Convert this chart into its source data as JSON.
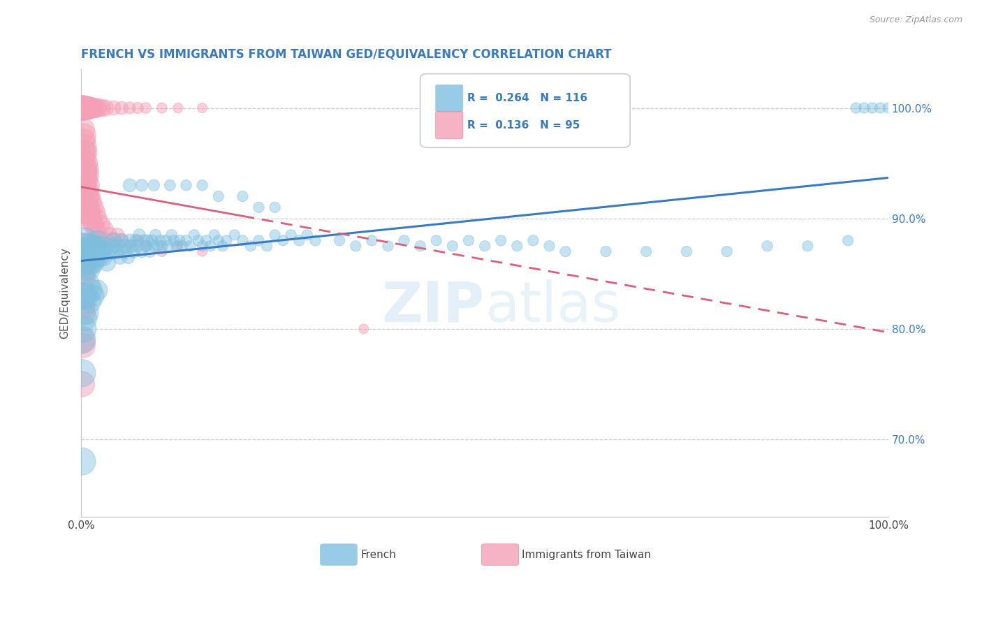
{
  "title": "FRENCH VS IMMIGRANTS FROM TAIWAN GED/EQUIVALENCY CORRELATION CHART",
  "source": "Source: ZipAtlas.com",
  "ylabel": "GED/Equivalency",
  "french_R": 0.264,
  "french_N": 116,
  "taiwan_R": 0.136,
  "taiwan_N": 95,
  "french_color": "#7fbfdf",
  "taiwan_color": "#f4a0b8",
  "background_color": "#ffffff",
  "watermark": "ZIPatlas",
  "xlim": [
    0.0,
    1.0
  ],
  "ylim": [
    0.63,
    1.035
  ],
  "ytick_vals": [
    0.7,
    0.8,
    0.9,
    1.0
  ],
  "ytick_labels": [
    "70.0%",
    "80.0%",
    "90.0%",
    "100.0%"
  ],
  "french_points": [
    [
      0.002,
      0.87
    ],
    [
      0.003,
      0.86
    ],
    [
      0.004,
      0.875
    ],
    [
      0.005,
      0.88
    ],
    [
      0.005,
      0.855
    ],
    [
      0.006,
      0.87
    ],
    [
      0.007,
      0.865
    ],
    [
      0.008,
      0.875
    ],
    [
      0.009,
      0.855
    ],
    [
      0.01,
      0.87
    ],
    [
      0.011,
      0.86
    ],
    [
      0.012,
      0.875
    ],
    [
      0.013,
      0.865
    ],
    [
      0.014,
      0.875
    ],
    [
      0.015,
      0.86
    ],
    [
      0.016,
      0.87
    ],
    [
      0.017,
      0.875
    ],
    [
      0.018,
      0.865
    ],
    [
      0.019,
      0.875
    ],
    [
      0.02,
      0.88
    ],
    [
      0.022,
      0.865
    ],
    [
      0.025,
      0.87
    ],
    [
      0.027,
      0.865
    ],
    [
      0.03,
      0.875
    ],
    [
      0.032,
      0.86
    ],
    [
      0.035,
      0.87
    ],
    [
      0.038,
      0.875
    ],
    [
      0.04,
      0.88
    ],
    [
      0.043,
      0.87
    ],
    [
      0.045,
      0.875
    ],
    [
      0.048,
      0.865
    ],
    [
      0.05,
      0.88
    ],
    [
      0.053,
      0.87
    ],
    [
      0.055,
      0.875
    ],
    [
      0.058,
      0.865
    ],
    [
      0.06,
      0.88
    ],
    [
      0.063,
      0.875
    ],
    [
      0.065,
      0.87
    ],
    [
      0.068,
      0.88
    ],
    [
      0.07,
      0.875
    ],
    [
      0.072,
      0.885
    ],
    [
      0.075,
      0.87
    ],
    [
      0.078,
      0.88
    ],
    [
      0.08,
      0.875
    ],
    [
      0.082,
      0.88
    ],
    [
      0.085,
      0.87
    ],
    [
      0.088,
      0.88
    ],
    [
      0.09,
      0.875
    ],
    [
      0.092,
      0.885
    ],
    [
      0.095,
      0.875
    ],
    [
      0.098,
      0.88
    ],
    [
      0.1,
      0.875
    ],
    [
      0.105,
      0.88
    ],
    [
      0.108,
      0.875
    ],
    [
      0.112,
      0.885
    ],
    [
      0.115,
      0.88
    ],
    [
      0.118,
      0.875
    ],
    [
      0.122,
      0.88
    ],
    [
      0.125,
      0.875
    ],
    [
      0.13,
      0.88
    ],
    [
      0.135,
      0.875
    ],
    [
      0.14,
      0.885
    ],
    [
      0.145,
      0.88
    ],
    [
      0.15,
      0.875
    ],
    [
      0.155,
      0.88
    ],
    [
      0.16,
      0.875
    ],
    [
      0.165,
      0.885
    ],
    [
      0.17,
      0.88
    ],
    [
      0.175,
      0.875
    ],
    [
      0.18,
      0.88
    ],
    [
      0.19,
      0.885
    ],
    [
      0.2,
      0.88
    ],
    [
      0.21,
      0.875
    ],
    [
      0.22,
      0.88
    ],
    [
      0.23,
      0.875
    ],
    [
      0.24,
      0.885
    ],
    [
      0.25,
      0.88
    ],
    [
      0.26,
      0.885
    ],
    [
      0.27,
      0.88
    ],
    [
      0.28,
      0.885
    ],
    [
      0.29,
      0.88
    ],
    [
      0.005,
      0.83
    ],
    [
      0.008,
      0.84
    ],
    [
      0.01,
      0.825
    ],
    [
      0.012,
      0.835
    ],
    [
      0.015,
      0.83
    ],
    [
      0.02,
      0.835
    ],
    [
      0.003,
      0.81
    ],
    [
      0.006,
      0.815
    ],
    [
      0.002,
      0.8
    ],
    [
      0.001,
      0.83
    ],
    [
      0.001,
      0.79
    ],
    [
      0.001,
      0.76
    ],
    [
      0.001,
      0.68
    ],
    [
      0.06,
      0.93
    ],
    [
      0.075,
      0.93
    ],
    [
      0.09,
      0.93
    ],
    [
      0.11,
      0.93
    ],
    [
      0.13,
      0.93
    ],
    [
      0.15,
      0.93
    ],
    [
      0.17,
      0.92
    ],
    [
      0.2,
      0.92
    ],
    [
      0.22,
      0.91
    ],
    [
      0.24,
      0.91
    ],
    [
      0.32,
      0.88
    ],
    [
      0.34,
      0.875
    ],
    [
      0.36,
      0.88
    ],
    [
      0.38,
      0.875
    ],
    [
      0.4,
      0.88
    ],
    [
      0.42,
      0.875
    ],
    [
      0.44,
      0.88
    ],
    [
      0.46,
      0.875
    ],
    [
      0.48,
      0.88
    ],
    [
      0.5,
      0.875
    ],
    [
      0.52,
      0.88
    ],
    [
      0.54,
      0.875
    ],
    [
      0.56,
      0.88
    ],
    [
      0.58,
      0.875
    ],
    [
      0.6,
      0.87
    ],
    [
      0.65,
      0.87
    ],
    [
      0.7,
      0.87
    ],
    [
      0.75,
      0.87
    ],
    [
      0.8,
      0.87
    ],
    [
      0.85,
      0.875
    ],
    [
      0.9,
      0.875
    ],
    [
      0.95,
      0.88
    ],
    [
      0.96,
      1.0
    ],
    [
      0.97,
      1.0
    ],
    [
      0.98,
      1.0
    ],
    [
      0.99,
      1.0
    ],
    [
      1.0,
      1.0
    ]
  ],
  "taiwan_points": [
    [
      0.001,
      1.0
    ],
    [
      0.002,
      1.0
    ],
    [
      0.003,
      1.0
    ],
    [
      0.004,
      1.0
    ],
    [
      0.005,
      1.0
    ],
    [
      0.006,
      1.0
    ],
    [
      0.007,
      1.0
    ],
    [
      0.008,
      1.0
    ],
    [
      0.009,
      1.0
    ],
    [
      0.01,
      1.0
    ],
    [
      0.012,
      1.0
    ],
    [
      0.015,
      1.0
    ],
    [
      0.018,
      1.0
    ],
    [
      0.02,
      1.0
    ],
    [
      0.025,
      1.0
    ],
    [
      0.03,
      1.0
    ],
    [
      0.04,
      1.0
    ],
    [
      0.05,
      1.0
    ],
    [
      0.06,
      1.0
    ],
    [
      0.07,
      1.0
    ],
    [
      0.08,
      1.0
    ],
    [
      0.1,
      1.0
    ],
    [
      0.12,
      1.0
    ],
    [
      0.15,
      1.0
    ],
    [
      0.001,
      0.98
    ],
    [
      0.002,
      0.97
    ],
    [
      0.002,
      0.96
    ],
    [
      0.003,
      0.975
    ],
    [
      0.003,
      0.955
    ],
    [
      0.003,
      0.94
    ],
    [
      0.004,
      0.965
    ],
    [
      0.004,
      0.945
    ],
    [
      0.004,
      0.93
    ],
    [
      0.005,
      0.96
    ],
    [
      0.005,
      0.94
    ],
    [
      0.005,
      0.92
    ],
    [
      0.006,
      0.95
    ],
    [
      0.006,
      0.935
    ],
    [
      0.006,
      0.915
    ],
    [
      0.007,
      0.945
    ],
    [
      0.007,
      0.925
    ],
    [
      0.007,
      0.905
    ],
    [
      0.008,
      0.94
    ],
    [
      0.008,
      0.92
    ],
    [
      0.008,
      0.9
    ],
    [
      0.009,
      0.93
    ],
    [
      0.009,
      0.91
    ],
    [
      0.01,
      0.92
    ],
    [
      0.01,
      0.905
    ],
    [
      0.012,
      0.915
    ],
    [
      0.012,
      0.9
    ],
    [
      0.015,
      0.91
    ],
    [
      0.015,
      0.895
    ],
    [
      0.018,
      0.905
    ],
    [
      0.018,
      0.89
    ],
    [
      0.02,
      0.9
    ],
    [
      0.02,
      0.885
    ],
    [
      0.025,
      0.895
    ],
    [
      0.025,
      0.88
    ],
    [
      0.03,
      0.89
    ],
    [
      0.03,
      0.88
    ],
    [
      0.035,
      0.885
    ],
    [
      0.04,
      0.88
    ],
    [
      0.045,
      0.885
    ],
    [
      0.05,
      0.88
    ],
    [
      0.06,
      0.875
    ],
    [
      0.07,
      0.88
    ],
    [
      0.08,
      0.875
    ],
    [
      0.1,
      0.87
    ],
    [
      0.12,
      0.875
    ],
    [
      0.15,
      0.87
    ],
    [
      0.001,
      0.875
    ],
    [
      0.002,
      0.865
    ],
    [
      0.003,
      0.87
    ],
    [
      0.004,
      0.86
    ],
    [
      0.005,
      0.865
    ],
    [
      0.006,
      0.86
    ],
    [
      0.001,
      0.85
    ],
    [
      0.002,
      0.845
    ],
    [
      0.001,
      0.82
    ],
    [
      0.002,
      0.815
    ],
    [
      0.001,
      0.79
    ],
    [
      0.002,
      0.785
    ],
    [
      0.001,
      0.75
    ],
    [
      0.35,
      0.8
    ]
  ],
  "bubble_size_french": 180,
  "bubble_size_taiwan": 150,
  "bubble_size_large": 600
}
